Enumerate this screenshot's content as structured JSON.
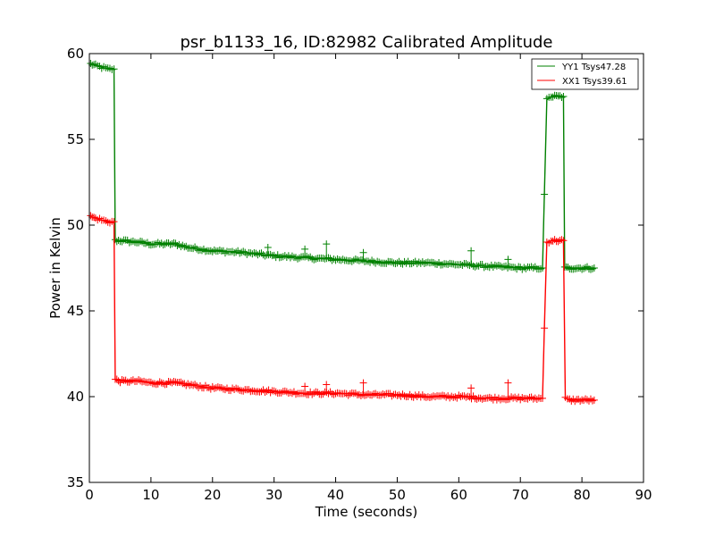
{
  "chart_data": {
    "type": "line",
    "title": "psr_b1133_16, ID:82982 Calibrated Amplitude",
    "xlabel": "Time (seconds)",
    "ylabel": "Power in Kelvin",
    "xlim": [
      0,
      90
    ],
    "ylim": [
      35,
      60
    ],
    "xticks": [
      0,
      10,
      20,
      30,
      40,
      50,
      60,
      70,
      80,
      90
    ],
    "yticks": [
      35,
      40,
      45,
      50,
      55,
      60
    ],
    "grid": false,
    "legend_position": "top-right",
    "marker": "+",
    "series": [
      {
        "name": "YY1 Tsys47.28",
        "color": "#008000",
        "x": [
          0.2,
          1,
          2,
          3,
          4,
          4.2,
          5,
          8,
          10,
          12,
          14,
          16,
          18,
          20,
          25,
          30,
          35,
          40,
          45,
          50,
          55,
          60,
          65,
          70,
          73.6,
          73.9,
          74.3,
          75,
          77,
          77.2,
          78,
          80,
          82
        ],
        "y": [
          59.4,
          59.3,
          59.2,
          59.1,
          59.1,
          49.1,
          49.1,
          49.0,
          48.9,
          48.9,
          48.9,
          48.7,
          48.6,
          48.5,
          48.4,
          48.2,
          48.1,
          48.0,
          47.9,
          47.8,
          47.8,
          47.7,
          47.6,
          47.5,
          47.5,
          51.8,
          57.3,
          57.5,
          57.5,
          47.5,
          47.5,
          47.5,
          47.5
        ]
      },
      {
        "name": "XX1 Tsys39.61",
        "color": "#ff0000",
        "x": [
          0.2,
          1,
          2,
          3,
          4,
          4.2,
          5,
          8,
          10,
          12,
          14,
          16,
          18,
          20,
          25,
          30,
          35,
          40,
          45,
          50,
          55,
          60,
          65,
          70,
          73.6,
          73.9,
          74.3,
          75,
          77,
          77.3,
          78,
          80,
          82
        ],
        "y": [
          50.5,
          50.4,
          50.3,
          50.2,
          50.2,
          41.0,
          40.9,
          40.9,
          40.8,
          40.8,
          40.8,
          40.7,
          40.6,
          40.5,
          40.4,
          40.3,
          40.2,
          40.2,
          40.1,
          40.1,
          40.0,
          40.0,
          39.9,
          39.9,
          39.9,
          44.0,
          49.0,
          49.1,
          49.1,
          39.9,
          39.8,
          39.8,
          39.8
        ]
      }
    ],
    "spikes": [
      {
        "series": 0,
        "x": 29,
        "y": 48.7
      },
      {
        "series": 0,
        "x": 35,
        "y": 48.6
      },
      {
        "series": 0,
        "x": 38.5,
        "y": 48.9
      },
      {
        "series": 0,
        "x": 44.5,
        "y": 48.4
      },
      {
        "series": 0,
        "x": 62,
        "y": 48.5
      },
      {
        "series": 0,
        "x": 68,
        "y": 48.0
      },
      {
        "series": 1,
        "x": 35,
        "y": 40.6
      },
      {
        "series": 1,
        "x": 38.5,
        "y": 40.7
      },
      {
        "series": 1,
        "x": 44.5,
        "y": 40.8
      },
      {
        "series": 1,
        "x": 62,
        "y": 40.5
      },
      {
        "series": 1,
        "x": 68,
        "y": 40.8
      }
    ]
  }
}
